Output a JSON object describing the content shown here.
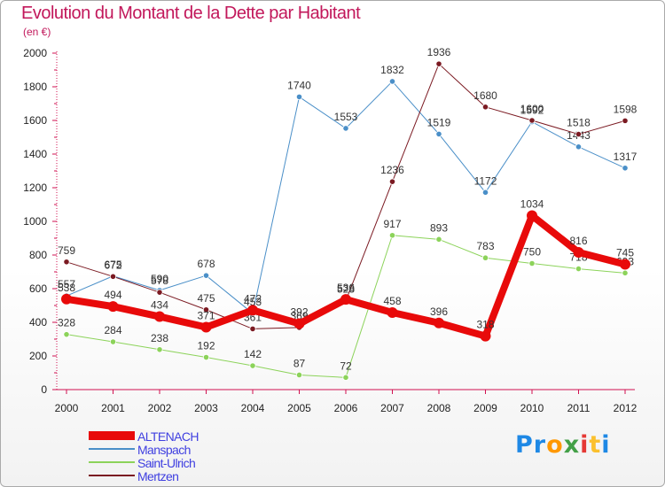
{
  "title": "Evolution du Montant de la Dette par Habitant",
  "subtitle": "(en €)",
  "logo": {
    "letters": [
      "P",
      "r",
      "o",
      "x",
      "i",
      "t",
      "i"
    ],
    "colors": [
      "#1e88e5",
      "#1e88e5",
      "#ff9800",
      "#43a047",
      "#e53935",
      "#fbc02d",
      "#1e88e5"
    ]
  },
  "chart_data": {
    "type": "line",
    "categories": [
      "2000",
      "2001",
      "2002",
      "2003",
      "2004",
      "2005",
      "2006",
      "2007",
      "2008",
      "2009",
      "2010",
      "2011",
      "2012"
    ],
    "yticks": [
      0,
      200,
      400,
      600,
      800,
      1000,
      1200,
      1400,
      1600,
      1800,
      2000
    ],
    "ylim": [
      0,
      2000
    ],
    "grid": false,
    "legend": "bottom-left",
    "series": [
      {
        "name": "Manspach",
        "color": "#4a8fc8",
        "width": 1,
        "marker": 3.2,
        "values": [
          557,
          675,
          590,
          678,
          453,
          1740,
          1553,
          1832,
          1519,
          1172,
          1592,
          1443,
          1317
        ],
        "labels": [
          "557",
          "675",
          "590",
          "678",
          "453",
          "1740",
          "1553",
          "1832",
          "1519",
          "1172",
          "1592",
          "1443",
          "1317"
        ]
      },
      {
        "name": "Saint-Ulrich",
        "color": "#8cd35a",
        "width": 1,
        "marker": 3.2,
        "values": [
          328,
          284,
          238,
          192,
          142,
          87,
          72,
          917,
          893,
          783,
          750,
          718,
          693
        ],
        "labels": [
          "328",
          "284",
          "238",
          "192",
          "142",
          "87",
          "72",
          "917",
          "893",
          "783",
          "750",
          "718",
          "693"
        ]
      },
      {
        "name": "Mertzen",
        "color": "#7b1a22",
        "width": 1,
        "marker": 3.2,
        "values": [
          759,
          672,
          578,
          475,
          361,
          369,
          528,
          1236,
          1936,
          1680,
          1600,
          1518,
          1598
        ],
        "labels": [
          "759",
          "672",
          "578",
          "475",
          "361",
          "369",
          "528",
          "1236",
          "1936",
          "1680",
          "1600",
          "1518",
          "1598"
        ]
      },
      {
        "name": "ALTENACH",
        "color": "#e80a0a",
        "width": 8,
        "marker": 6,
        "values": [
          538,
          494,
          434,
          371,
          472,
          392,
          536,
          458,
          396,
          318,
          1034,
          816,
          745
        ],
        "labels": [
          "538",
          "494",
          "434",
          "371",
          "472",
          "392",
          "536",
          "458",
          "396",
          "318",
          "1034",
          "816",
          "745"
        ]
      }
    ],
    "legend_entries": [
      {
        "name": "ALTENACH",
        "color": "#e80a0a",
        "thick": true
      },
      {
        "name": "Manspach",
        "color": "#4a8fc8",
        "thick": false
      },
      {
        "name": "Saint-Ulrich",
        "color": "#8cd35a",
        "thick": false
      },
      {
        "name": "Mertzen",
        "color": "#7b1a22",
        "thick": false
      }
    ]
  }
}
